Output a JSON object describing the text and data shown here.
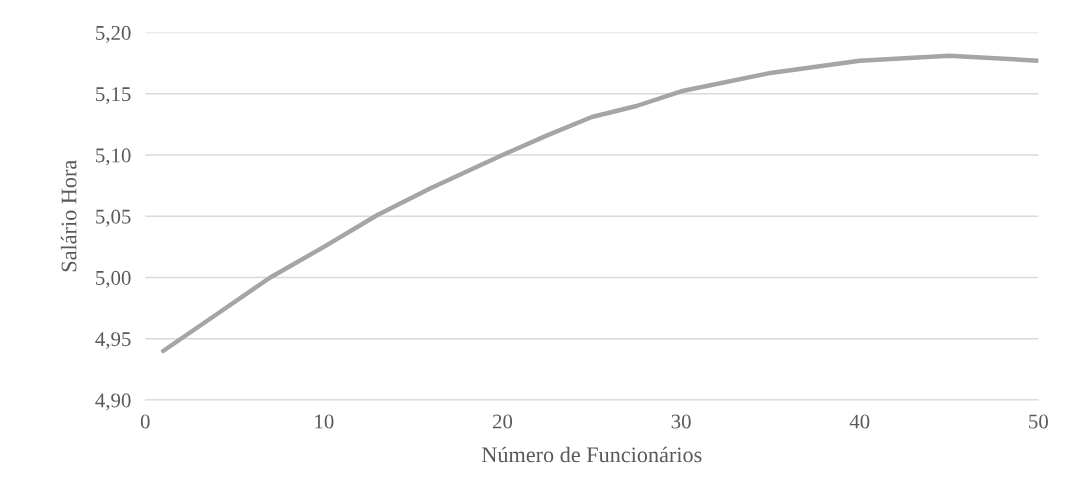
{
  "chart_data": {
    "type": "line",
    "xlabel": "Número de Funcionários",
    "ylabel": "Salário Hora",
    "x": [
      1,
      4,
      7,
      10,
      13,
      16,
      20,
      22.5,
      25,
      27.5,
      30,
      35,
      40,
      45,
      50
    ],
    "series": [
      {
        "color": "#a5a5a5",
        "values": [
          4.94,
          4.97,
          5.0,
          5.025,
          5.051,
          5.073,
          5.1,
          5.116,
          5.131,
          5.14,
          5.152,
          5.167,
          5.177,
          5.181,
          5.177
        ]
      }
    ],
    "xlim": [
      0,
      50
    ],
    "xticks": [
      0,
      10,
      20,
      30,
      40,
      50
    ],
    "ylim": [
      4.9,
      5.2
    ],
    "yticks": [
      {
        "value": 4.9,
        "label": "4,90"
      },
      {
        "value": 4.95,
        "label": "4,95"
      },
      {
        "value": 5.0,
        "label": "5,00"
      },
      {
        "value": 5.05,
        "label": "5,05"
      },
      {
        "value": 5.1,
        "label": "5,10"
      },
      {
        "value": 5.15,
        "label": "5,15"
      },
      {
        "value": 5.2,
        "label": "5,20"
      }
    ],
    "grid": "y",
    "marker": "none",
    "line_style": "solid"
  }
}
